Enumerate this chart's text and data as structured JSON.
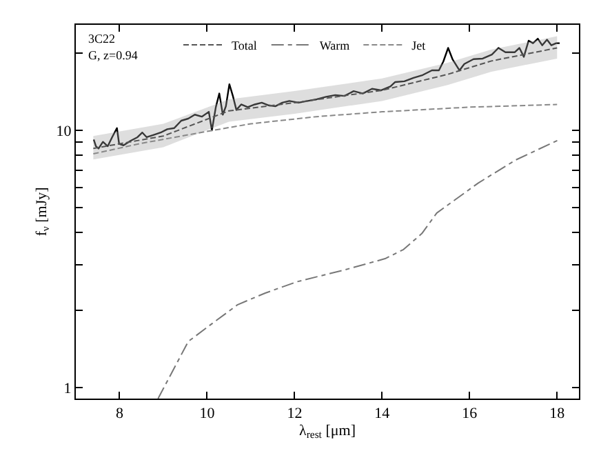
{
  "chart_data": {
    "type": "line",
    "xlabel": "λ$_{rest}$ [μm]",
    "ylabel": "f$_{ν}$ [mJy]",
    "annotations": [
      "3C22",
      "G, z=0.94"
    ],
    "log": "y",
    "xlim": [
      7,
      18.5
    ],
    "xticks": [
      8,
      10,
      12,
      14,
      16,
      18
    ],
    "ylim": [
      0.906,
      25.7
    ],
    "yticks": [
      1,
      {
        "value": 2,
        "label": null
      },
      {
        "value": 3,
        "label": null
      },
      {
        "value": 4,
        "label": null
      },
      {
        "value": 5,
        "label": null
      },
      {
        "value": 6,
        "label": null
      },
      {
        "value": 7,
        "label": null
      },
      {
        "value": 8,
        "label": null
      },
      {
        "value": 9,
        "label": null
      },
      10,
      {
        "value": 20,
        "label": null
      }
    ],
    "grid": false,
    "legend": "top left",
    "marker": "none",
    "series": [
      {
        "color": "#000000",
        "line_style": "solid",
        "x": [
          7.41,
          7.46,
          7.52,
          7.62,
          7.73,
          7.83,
          7.94,
          7.99,
          8.09,
          8.25,
          8.41,
          8.52,
          8.62,
          8.78,
          8.94,
          9.09,
          9.25,
          9.41,
          9.57,
          9.72,
          9.88,
          10.04,
          10.11,
          10.2,
          10.28,
          10.36,
          10.43,
          10.51,
          10.59,
          10.67,
          10.78,
          10.93,
          11.09,
          11.25,
          11.41,
          11.56,
          11.72,
          11.88,
          12.09,
          12.3,
          12.51,
          12.72,
          12.93,
          13.14,
          13.35,
          13.56,
          13.77,
          13.98,
          14.19,
          14.3,
          14.51,
          14.72,
          14.93,
          15.14,
          15.3,
          15.4,
          15.51,
          15.61,
          15.77,
          15.88,
          16.09,
          16.3,
          16.51,
          16.66,
          16.82,
          17.03,
          17.14,
          17.24,
          17.35,
          17.45,
          17.56,
          17.66,
          17.77,
          17.87,
          17.98,
          18.06
        ],
        "values": [
          9.21,
          8.67,
          8.49,
          9.02,
          8.67,
          9.4,
          10.2,
          8.85,
          8.74,
          9.1,
          9.4,
          9.8,
          9.4,
          9.6,
          9.8,
          10.1,
          10.2,
          10.9,
          11.1,
          11.5,
          11.3,
          11.8,
          10.0,
          12.3,
          13.9,
          11.5,
          12.4,
          15.1,
          13.6,
          12.0,
          12.6,
          12.3,
          12.6,
          12.8,
          12.5,
          12.4,
          12.8,
          13.0,
          12.8,
          13.0,
          13.2,
          13.5,
          13.7,
          13.6,
          14.2,
          13.9,
          14.5,
          14.3,
          14.8,
          15.4,
          15.5,
          16.0,
          16.4,
          17.1,
          17.1,
          18.5,
          20.9,
          18.9,
          17.1,
          18.1,
          18.9,
          19.0,
          19.7,
          20.9,
          20.1,
          20.1,
          20.9,
          19.3,
          22.3,
          21.8,
          22.7,
          21.4,
          22.5,
          21.4,
          21.8,
          21.8
        ]
      },
      {
        "name": "Total",
        "color": "#555555",
        "line_style": "dashed",
        "x": [
          7.4,
          9,
          10.5,
          12,
          14,
          15.5,
          16.5,
          18
        ],
        "values": [
          8.5,
          9.5,
          11.9,
          12.8,
          14.3,
          16.5,
          18.6,
          20.9
        ],
        "lower": [
          7.7,
          8.6,
          10.8,
          11.6,
          13.0,
          15.0,
          16.9,
          19.0
        ],
        "upper": [
          9.5,
          10.6,
          13.2,
          14.2,
          15.9,
          18.3,
          20.6,
          23.2
        ]
      },
      {
        "name": "Warm",
        "color": "#777777",
        "line_style": "dashdot",
        "x": [
          8.88,
          9.57,
          10.07,
          10.7,
          11.33,
          12.06,
          13.12,
          14.07,
          14.49,
          14.91,
          15.25,
          16.2,
          17.05,
          18.05
        ],
        "values": [
          0.906,
          1.51,
          1.75,
          2.1,
          2.33,
          2.58,
          2.86,
          3.17,
          3.44,
          3.97,
          4.77,
          6.24,
          7.66,
          9.2
        ]
      },
      {
        "name": "Jet",
        "color": "#888888",
        "line_style": "dashed",
        "x": [
          7.4,
          8.5,
          10,
          11,
          12.5,
          14,
          16,
          18
        ],
        "values": [
          8.1,
          8.9,
          9.9,
          10.6,
          11.3,
          11.8,
          12.3,
          12.6
        ]
      }
    ]
  }
}
